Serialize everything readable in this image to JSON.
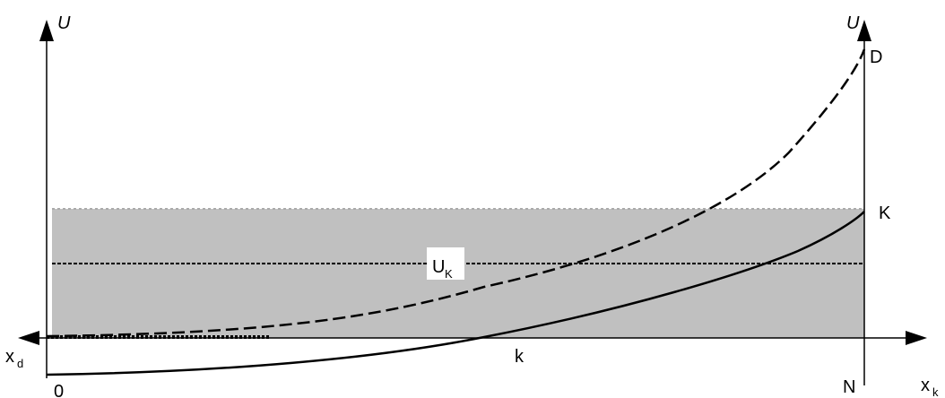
{
  "labels": {
    "left_axis": "U",
    "right_axis": "U",
    "point_d": "D",
    "point_k": "K",
    "point_n": "N",
    "origin": "0",
    "x_left": "x",
    "x_left_sub": "d",
    "x_right": "x",
    "x_right_sub": "k",
    "mid_axis": "k",
    "band_label": "U",
    "band_label_sub": "K"
  },
  "colors": {
    "band_fill": "#c0c0c0",
    "line": "#000000"
  }
}
